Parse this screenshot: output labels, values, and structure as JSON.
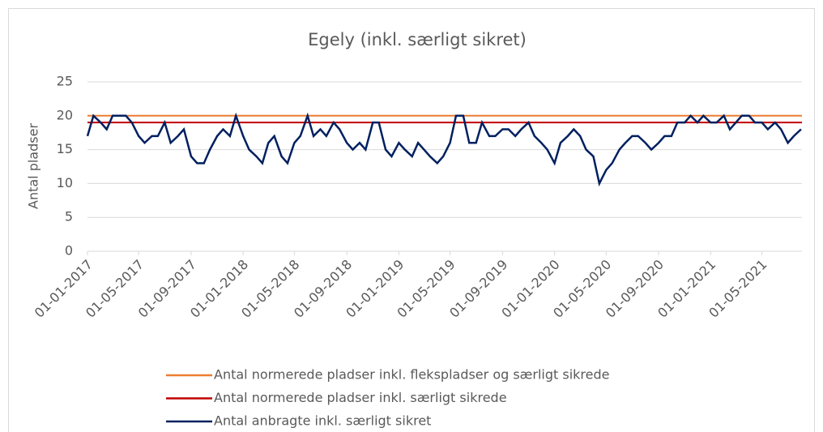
{
  "chart_data": {
    "type": "line",
    "title": "Egely (inkl. særligt sikret)",
    "y_label": "Antal pladser",
    "xlim": [
      "01-01-2017",
      "03-08-2021"
    ],
    "xticks": [
      "01-01-2017",
      "01-05-2017",
      "01-09-2017",
      "01-01-2018",
      "01-05-2018",
      "01-09-2018",
      "01-01-2019",
      "01-05-2019",
      "01-09-2019",
      "01-01-2020",
      "01-05-2020",
      "01-09-2020",
      "01-01-2021",
      "01-05-2021"
    ],
    "ylim": [
      0,
      25
    ],
    "yticks": [
      0,
      5,
      10,
      15,
      20,
      25
    ],
    "grid": true,
    "series": [
      {
        "name": "Antal normerede pladser inkl. flekspladser og særligt sikrede",
        "color": "#ED7D31",
        "x": [
          "01-01-2017",
          "03-08-2021"
        ],
        "values": [
          20,
          20
        ]
      },
      {
        "name": "Antal normerede pladser inkl. særligt sikrede",
        "color": "#C00000",
        "x": [
          "01-01-2017",
          "03-08-2021"
        ],
        "values": [
          19,
          19
        ]
      },
      {
        "name": "Antal anbragte inkl. særligt sikret",
        "color": "#002060",
        "x": [
          "01-01-2017",
          "15-01-2017",
          "01-02-2017",
          "15-02-2017",
          "01-03-2017",
          "15-03-2017",
          "01-04-2017",
          "15-04-2017",
          "01-05-2017",
          "15-05-2017",
          "01-06-2017",
          "15-06-2017",
          "01-07-2017",
          "15-07-2017",
          "01-08-2017",
          "15-08-2017",
          "01-09-2017",
          "15-09-2017",
          "01-10-2017",
          "15-10-2017",
          "01-11-2017",
          "15-11-2017",
          "01-12-2017",
          "15-12-2017",
          "01-01-2018",
          "15-01-2018",
          "01-02-2018",
          "15-02-2018",
          "01-03-2018",
          "15-03-2018",
          "01-04-2018",
          "15-04-2018",
          "01-05-2018",
          "15-05-2018",
          "01-06-2018",
          "15-06-2018",
          "01-07-2018",
          "15-07-2018",
          "01-08-2018",
          "15-08-2018",
          "01-09-2018",
          "15-09-2018",
          "01-10-2018",
          "15-10-2018",
          "01-11-2018",
          "15-11-2018",
          "01-12-2018",
          "15-12-2018",
          "01-01-2019",
          "15-01-2019",
          "01-02-2019",
          "15-02-2019",
          "01-03-2019",
          "15-03-2019",
          "01-04-2019",
          "15-04-2019",
          "01-05-2019",
          "15-05-2019",
          "01-06-2019",
          "15-06-2019",
          "01-07-2019",
          "15-07-2019",
          "01-08-2019",
          "15-08-2019",
          "01-09-2019",
          "15-09-2019",
          "01-10-2019",
          "15-10-2019",
          "01-11-2019",
          "15-11-2019",
          "01-12-2019",
          "15-12-2019",
          "01-01-2020",
          "15-01-2020",
          "01-02-2020",
          "15-02-2020",
          "01-03-2020",
          "15-03-2020",
          "01-04-2020",
          "15-04-2020",
          "01-05-2020",
          "15-05-2020",
          "01-06-2020",
          "15-06-2020",
          "01-07-2020",
          "15-07-2020",
          "01-08-2020",
          "15-08-2020",
          "01-09-2020",
          "15-09-2020",
          "01-10-2020",
          "15-10-2020",
          "01-11-2020",
          "15-11-2020",
          "01-12-2020",
          "15-12-2020",
          "01-01-2021",
          "15-01-2021",
          "01-02-2021",
          "15-02-2021",
          "01-03-2021",
          "15-03-2021",
          "01-04-2021",
          "15-04-2021",
          "01-05-2021",
          "15-05-2021",
          "01-06-2021",
          "15-06-2021",
          "01-07-2021",
          "15-07-2021",
          "01-08-2021"
        ],
        "values": [
          17,
          20,
          19,
          18,
          20,
          20,
          20,
          19,
          17,
          16,
          17,
          17,
          19,
          16,
          17,
          18,
          14,
          13,
          13,
          15,
          17,
          18,
          17,
          20,
          17,
          15,
          14,
          13,
          16,
          17,
          14,
          13,
          16,
          17,
          20,
          17,
          18,
          17,
          19,
          18,
          16,
          15,
          16,
          15,
          19,
          19,
          15,
          14,
          16,
          15,
          14,
          16,
          15,
          14,
          13,
          14,
          16,
          20,
          20,
          16,
          16,
          19,
          17,
          17,
          18,
          18,
          17,
          18,
          19,
          17,
          16,
          15,
          13,
          16,
          17,
          18,
          17,
          15,
          14,
          10,
          12,
          13,
          15,
          16,
          17,
          17,
          16,
          15,
          16,
          17,
          17,
          19,
          19,
          20,
          19,
          20,
          19,
          19,
          20,
          18,
          19,
          20,
          20,
          19,
          19,
          18,
          19,
          18,
          16,
          17,
          18
        ]
      }
    ]
  }
}
